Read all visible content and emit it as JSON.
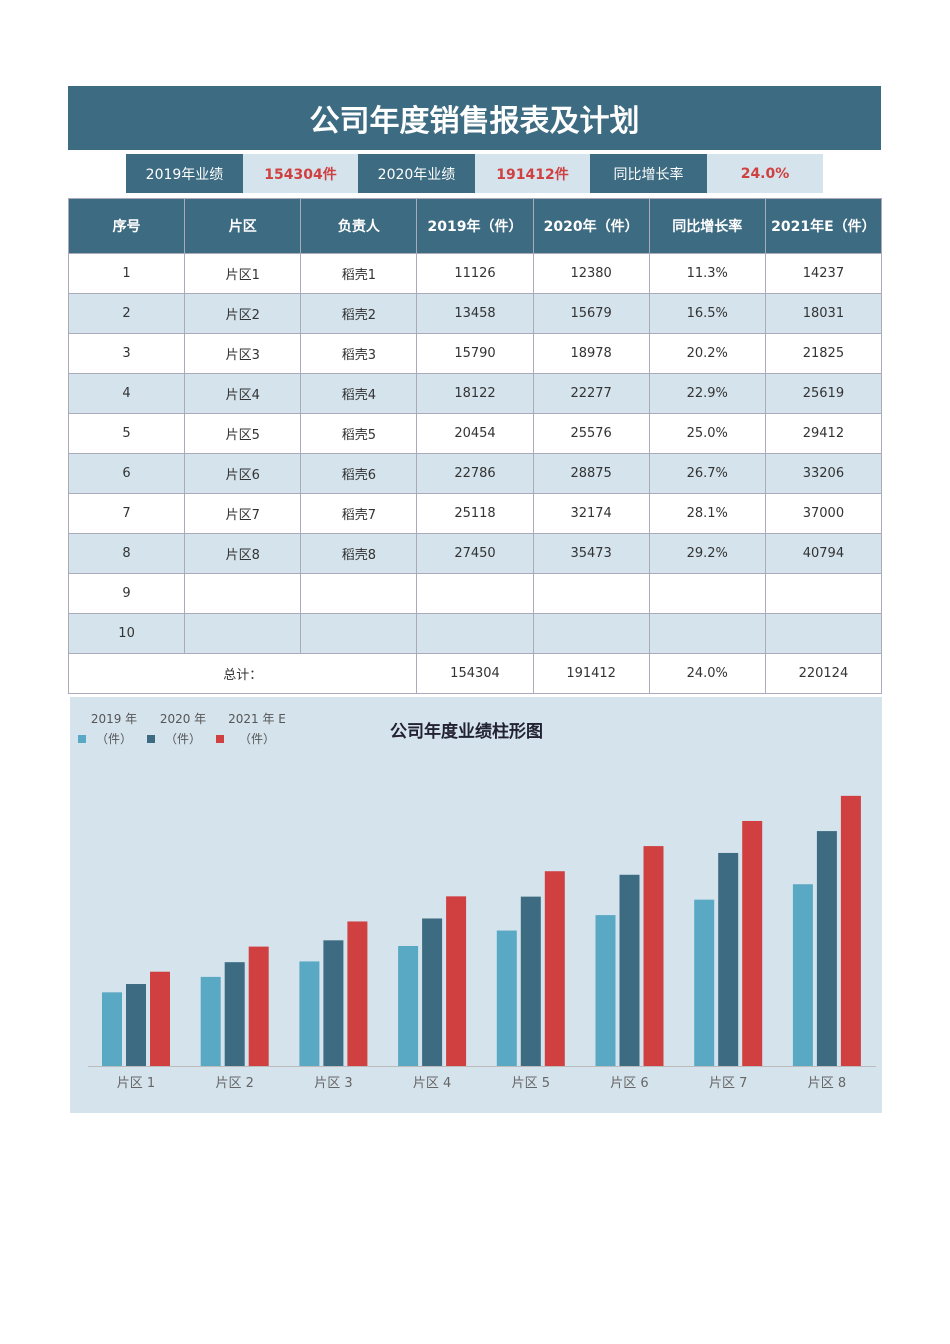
{
  "title": "公司年度销售报表及计划",
  "summary": {
    "label_2019": "2019年业绩",
    "value_2019": "154304件",
    "label_2020": "2020年业绩",
    "value_2020": "191412件",
    "label_growth": "同比增长率",
    "value_growth": "24.0%"
  },
  "table": {
    "headers": [
      "序号",
      "片区",
      "负责人",
      "2019年（件）",
      "2020年（件）",
      "同比增长率",
      "2021年E（件）"
    ],
    "rows": [
      [
        "1",
        "片区1",
        "稻壳1",
        "11126",
        "12380",
        "11.3%",
        "14237"
      ],
      [
        "2",
        "片区2",
        "稻壳2",
        "13458",
        "15679",
        "16.5%",
        "18031"
      ],
      [
        "3",
        "片区3",
        "稻壳3",
        "15790",
        "18978",
        "20.2%",
        "21825"
      ],
      [
        "4",
        "片区4",
        "稻壳4",
        "18122",
        "22277",
        "22.9%",
        "25619"
      ],
      [
        "5",
        "片区5",
        "稻壳5",
        "20454",
        "25576",
        "25.0%",
        "29412"
      ],
      [
        "6",
        "片区6",
        "稻壳6",
        "22786",
        "28875",
        "26.7%",
        "33206"
      ],
      [
        "7",
        "片区7",
        "稻壳7",
        "25118",
        "32174",
        "28.1%",
        "37000"
      ],
      [
        "8",
        "片区8",
        "稻壳8",
        "27450",
        "35473",
        "29.2%",
        "40794"
      ],
      [
        "9",
        "",
        "",
        "",
        "",
        "",
        ""
      ],
      [
        "10",
        "",
        "",
        "",
        "",
        "",
        ""
      ]
    ],
    "total": {
      "label": "总计：",
      "v2019": "154304",
      "v2020": "191412",
      "growth": "24.0%",
      "v2021": "220124"
    }
  },
  "chart_data": {
    "type": "bar",
    "title": "公司年度业绩柱形图",
    "categories": [
      "片区 1",
      "片区 2",
      "片区 3",
      "片区 4",
      "片区 5",
      "片区 6",
      "片区 7",
      "片区 8"
    ],
    "series": [
      {
        "name": "2019 年（件）",
        "color": "#5aa9c4",
        "values": [
          11126,
          13458,
          15790,
          18122,
          20454,
          22786,
          25118,
          27450
        ]
      },
      {
        "name": "2020 年（件）",
        "color": "#3d6b82",
        "values": [
          12380,
          15679,
          18978,
          22277,
          25576,
          28875,
          32174,
          35473
        ]
      },
      {
        "name": "2021 年 E（件）",
        "color": "#d04040",
        "values": [
          14237,
          18031,
          21825,
          25619,
          29412,
          33206,
          37000,
          40794
        ]
      }
    ],
    "ylim": [
      0,
      45000
    ],
    "grid": false,
    "legend": "top-left"
  }
}
